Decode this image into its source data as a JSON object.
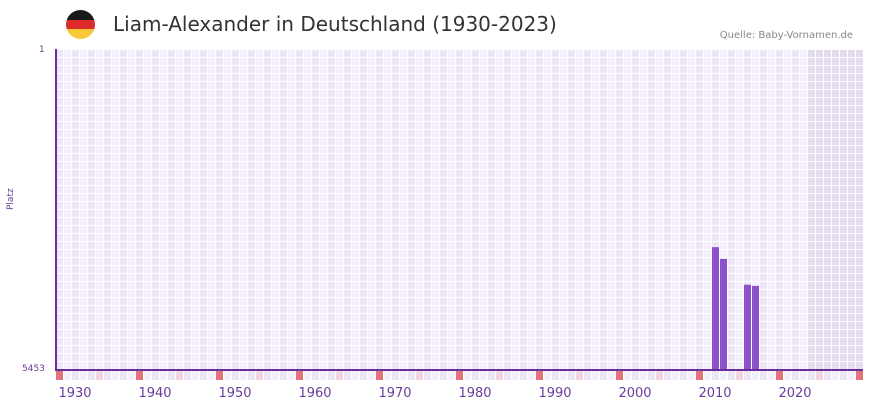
{
  "header": {
    "title": "Liam-Alexander in Deutschland (1930-2023)",
    "source": "Quelle: Baby-Vornamen.de",
    "flag_colors": [
      "#1a1a1a",
      "#dd2a2a",
      "#f7c934"
    ]
  },
  "colors": {
    "bar": "#8e52c8",
    "axis": "#6a2d9a",
    "grid_light": "#f3effc",
    "grid_alt": "#ece6f8",
    "forecast_shade": "#e2dcee",
    "marker_strong": "#e5737b",
    "marker_weak": "#f3d6e0"
  },
  "chart_data": {
    "type": "bar",
    "title": "Liam-Alexander in Deutschland (1930-2023)",
    "xlabel": "",
    "ylabel": "Platz",
    "y_axis_inverted": true,
    "ylim": [
      1,
      5453
    ],
    "y_ticks": [
      "1",
      "5453"
    ],
    "x_range": [
      1928,
      2028
    ],
    "x_ticks": [
      "1930",
      "1940",
      "1950",
      "1960",
      "1970",
      "1980",
      "1990",
      "2000",
      "2010",
      "2020"
    ],
    "shaded_region_start": 2022,
    "grid": true,
    "categories": [
      2010,
      2011,
      2014,
      2015
    ],
    "values": [
      3360,
      3560,
      4000,
      4020
    ],
    "note": "values are rank (Platz); lower rank = taller bar"
  }
}
